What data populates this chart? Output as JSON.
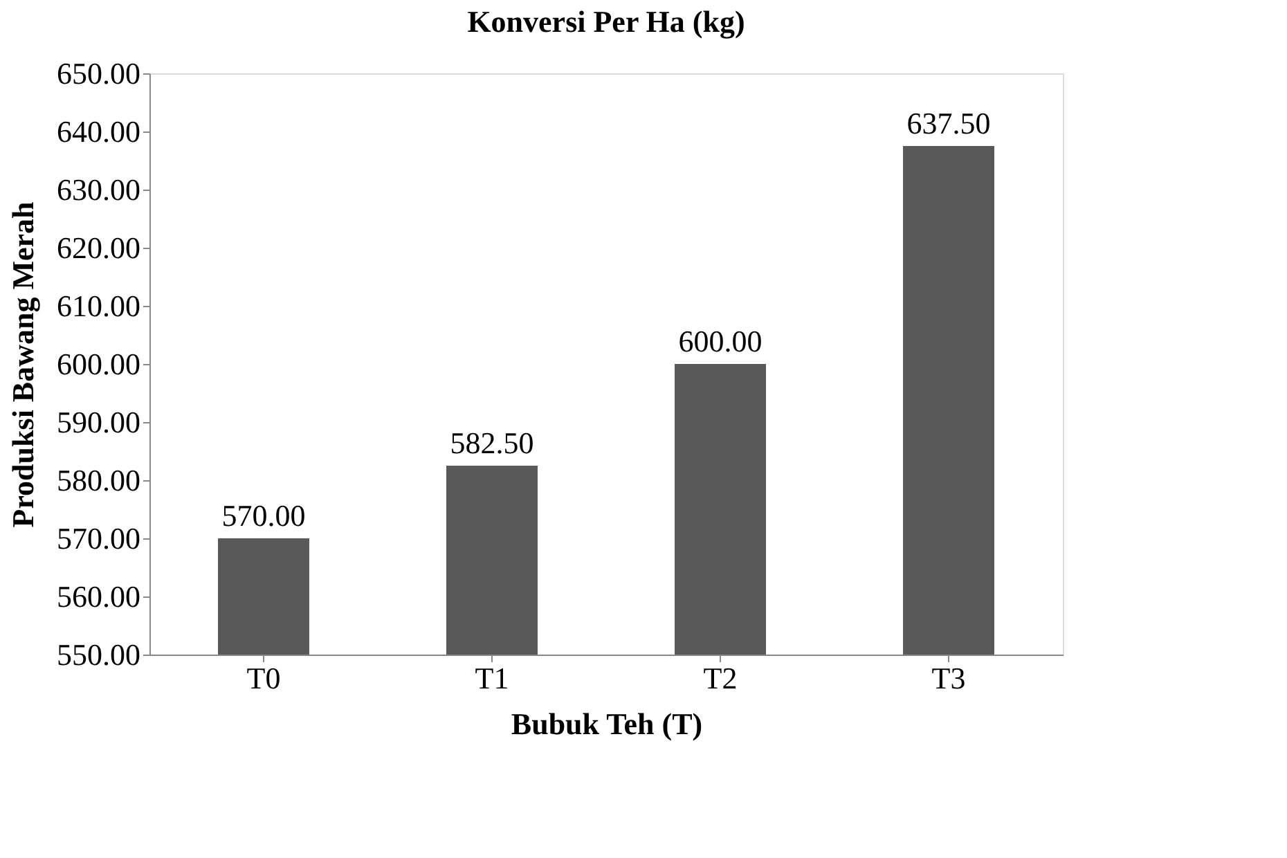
{
  "chart_data": {
    "type": "bar",
    "title": "Konversi Per Ha (kg)",
    "xlabel": "Bubuk Teh (T)",
    "ylabel": "Produksi Bawang Merah",
    "categories": [
      "T0",
      "T1",
      "T2",
      "T3"
    ],
    "values": [
      570,
      582.5,
      600,
      637.5
    ],
    "value_labels": [
      "570.00",
      "582.50",
      "600.00",
      "637.50"
    ],
    "color": "#595959",
    "ylim": [
      550,
      650
    ],
    "yticks": [
      {
        "value": 550,
        "label": "550.00"
      },
      {
        "value": 560,
        "label": "560.00"
      },
      {
        "value": 570,
        "label": "570.00"
      },
      {
        "value": 580,
        "label": "580.00"
      },
      {
        "value": 590,
        "label": "590.00"
      },
      {
        "value": 600,
        "label": "600.00"
      },
      {
        "value": 610,
        "label": "610.00"
      },
      {
        "value": 620,
        "label": "620.00"
      },
      {
        "value": 630,
        "label": "630.00"
      },
      {
        "value": 640,
        "label": "640.00"
      },
      {
        "value": 650,
        "label": "650.00"
      }
    ],
    "grid": false
  }
}
